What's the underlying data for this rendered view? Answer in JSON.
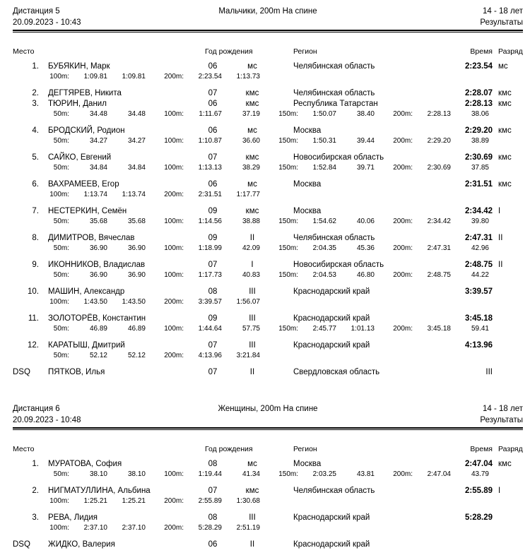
{
  "page": {
    "background": "#ffffff",
    "text_color": "#000000"
  },
  "sections": [
    {
      "header": {
        "distance": "Дистанция 5",
        "datetime": "20.09.2023 - 10:43",
        "event": "Мальчики, 200m На спине",
        "age_group": "14 - 18 лет",
        "results_label": "Результаты"
      },
      "columns": {
        "place": "Место",
        "birth_year": "Год рождения",
        "region": "Регион",
        "time": "Время",
        "rank": "Разряд"
      },
      "rows": [
        {
          "place": "1.",
          "name": "БУБЯКИН, Марк",
          "birth_year": "06",
          "entry_rank": "мс",
          "region": "Челябинская область",
          "time": "2:23.54",
          "final_rank": "мс",
          "splits": [
            {
              "label": "100m:",
              "time": "1:09.81",
              "diff": "1:09.81"
            },
            {
              "label": "200m:",
              "time": "2:23.54",
              "diff": "1:13.73"
            }
          ]
        },
        {
          "place": "2.",
          "name": "ДЕГТЯРЕВ, Никита",
          "birth_year": "07",
          "entry_rank": "кмс",
          "region": "Челябинская область",
          "time": "2:28.07",
          "final_rank": "кмс",
          "splits": []
        },
        {
          "place": "3.",
          "name": "ТЮРИН, Данил",
          "birth_year": "06",
          "entry_rank": "кмс",
          "region": "Республика Татарстан",
          "time": "2:28.13",
          "final_rank": "кмс",
          "splits": [
            {
              "label": "50m:",
              "time": "34.48",
              "diff": "34.48"
            },
            {
              "label": "100m:",
              "time": "1:11.67",
              "diff": "37.19"
            },
            {
              "label": "150m:",
              "time": "1:50.07",
              "diff": "38.40"
            },
            {
              "label": "200m:",
              "time": "2:28.13",
              "diff": "38.06"
            }
          ]
        },
        {
          "place": "4.",
          "name": "БРОДСКИЙ, Родион",
          "birth_year": "06",
          "entry_rank": "мс",
          "region": "Москва",
          "time": "2:29.20",
          "final_rank": "кмс",
          "splits": [
            {
              "label": "50m:",
              "time": "34.27",
              "diff": "34.27"
            },
            {
              "label": "100m:",
              "time": "1:10.87",
              "diff": "36.60"
            },
            {
              "label": "150m:",
              "time": "1:50.31",
              "diff": "39.44"
            },
            {
              "label": "200m:",
              "time": "2:29.20",
              "diff": "38.89"
            }
          ]
        },
        {
          "place": "5.",
          "name": "САЙКО, Евгений",
          "birth_year": "07",
          "entry_rank": "кмс",
          "region": "Новосибирская область",
          "time": "2:30.69",
          "final_rank": "кмс",
          "splits": [
            {
              "label": "50m:",
              "time": "34.84",
              "diff": "34.84"
            },
            {
              "label": "100m:",
              "time": "1:13.13",
              "diff": "38.29"
            },
            {
              "label": "150m:",
              "time": "1:52.84",
              "diff": "39.71"
            },
            {
              "label": "200m:",
              "time": "2:30.69",
              "diff": "37.85"
            }
          ]
        },
        {
          "place": "6.",
          "name": "ВАХРАМЕЕВ, Егор",
          "birth_year": "06",
          "entry_rank": "мс",
          "region": "Москва",
          "time": "2:31.51",
          "final_rank": "кмс",
          "splits": [
            {
              "label": "100m:",
              "time": "1:13.74",
              "diff": "1:13.74"
            },
            {
              "label": "200m:",
              "time": "2:31.51",
              "diff": "1:17.77"
            }
          ]
        },
        {
          "place": "7.",
          "name": "НЕСТЕРКИН, Семён",
          "birth_year": "09",
          "entry_rank": "кмс",
          "region": "Москва",
          "time": "2:34.42",
          "final_rank": "I",
          "splits": [
            {
              "label": "50m:",
              "time": "35.68",
              "diff": "35.68"
            },
            {
              "label": "100m:",
              "time": "1:14.56",
              "diff": "38.88"
            },
            {
              "label": "150m:",
              "time": "1:54.62",
              "diff": "40.06"
            },
            {
              "label": "200m:",
              "time": "2:34.42",
              "diff": "39.80"
            }
          ]
        },
        {
          "place": "8.",
          "name": "ДИМИТРОВ, Вячеслав",
          "birth_year": "09",
          "entry_rank": "II",
          "region": "Челябинская область",
          "time": "2:47.31",
          "final_rank": "II",
          "splits": [
            {
              "label": "50m:",
              "time": "36.90",
              "diff": "36.90"
            },
            {
              "label": "100m:",
              "time": "1:18.99",
              "diff": "42.09"
            },
            {
              "label": "150m:",
              "time": "2:04.35",
              "diff": "45.36"
            },
            {
              "label": "200m:",
              "time": "2:47.31",
              "diff": "42.96"
            }
          ]
        },
        {
          "place": "9.",
          "name": "ИКОННИКОВ, Владислав",
          "birth_year": "07",
          "entry_rank": "I",
          "region": "Новосибирская область",
          "time": "2:48.75",
          "final_rank": "II",
          "splits": [
            {
              "label": "50m:",
              "time": "36.90",
              "diff": "36.90"
            },
            {
              "label": "100m:",
              "time": "1:17.73",
              "diff": "40.83"
            },
            {
              "label": "150m:",
              "time": "2:04.53",
              "diff": "46.80"
            },
            {
              "label": "200m:",
              "time": "2:48.75",
              "diff": "44.22"
            }
          ]
        },
        {
          "place": "10.",
          "name": "МАШИН, Александр",
          "birth_year": "08",
          "entry_rank": "III",
          "region": "Краснодарский край",
          "time": "3:39.57",
          "final_rank": "",
          "splits": [
            {
              "label": "100m:",
              "time": "1:43.50",
              "diff": "1:43.50"
            },
            {
              "label": "200m:",
              "time": "3:39.57",
              "diff": "1:56.07"
            }
          ]
        },
        {
          "place": "11.",
          "name": "ЗОЛОТОРЁВ, Константин",
          "birth_year": "09",
          "entry_rank": "III",
          "region": "Краснодарский край",
          "time": "3:45.18",
          "final_rank": "",
          "splits": [
            {
              "label": "50m:",
              "time": "46.89",
              "diff": "46.89"
            },
            {
              "label": "100m:",
              "time": "1:44.64",
              "diff": "57.75"
            },
            {
              "label": "150m:",
              "time": "2:45.77",
              "diff": "1:01.13"
            },
            {
              "label": "200m:",
              "time": "3:45.18",
              "diff": "59.41"
            }
          ]
        },
        {
          "place": "12.",
          "name": "КАРАТЫШ, Дмитрий",
          "birth_year": "07",
          "entry_rank": "III",
          "region": "Краснодарский край",
          "time": "4:13.96",
          "final_rank": "",
          "splits": [
            {
              "label": "50m:",
              "time": "52.12",
              "diff": "52.12"
            },
            {
              "label": "200m:",
              "time": "4:13.96",
              "diff": "3:21.84"
            }
          ]
        },
        {
          "place": "DSQ",
          "name": "ПЯТКОВ, Илья",
          "birth_year": "07",
          "entry_rank": "II",
          "region": "Свердловская область",
          "time": "",
          "final_rank": "III",
          "splits": []
        }
      ]
    },
    {
      "header": {
        "distance": "Дистанция 6",
        "datetime": "20.09.2023 - 10:48",
        "event": "Женщины, 200m На спине",
        "age_group": "14 - 18 лет",
        "results_label": "Результаты"
      },
      "columns": {
        "place": "Место",
        "birth_year": "Год рождения",
        "region": "Регион",
        "time": "Время",
        "rank": "Разряд"
      },
      "rows": [
        {
          "place": "1.",
          "name": "МУРАТОВА, София",
          "birth_year": "08",
          "entry_rank": "мс",
          "region": "Москва",
          "time": "2:47.04",
          "final_rank": "кмс",
          "splits": [
            {
              "label": "50m:",
              "time": "38.10",
              "diff": "38.10"
            },
            {
              "label": "100m:",
              "time": "1:19.44",
              "diff": "41.34"
            },
            {
              "label": "150m:",
              "time": "2:03.25",
              "diff": "43.81"
            },
            {
              "label": "200m:",
              "time": "2:47.04",
              "diff": "43.79"
            }
          ]
        },
        {
          "place": "2.",
          "name": "НИГМАТУЛЛИНА, Альбина",
          "birth_year": "07",
          "entry_rank": "кмс",
          "region": "Челябинская область",
          "time": "2:55.89",
          "final_rank": "I",
          "splits": [
            {
              "label": "100m:",
              "time": "1:25.21",
              "diff": "1:25.21"
            },
            {
              "label": "200m:",
              "time": "2:55.89",
              "diff": "1:30.68"
            }
          ]
        },
        {
          "place": "3.",
          "name": "РЕВА, Лидия",
          "birth_year": "08",
          "entry_rank": "III",
          "region": "Краснодарский край",
          "time": "5:28.29",
          "final_rank": "",
          "splits": [
            {
              "label": "100m:",
              "time": "2:37.10",
              "diff": "2:37.10"
            },
            {
              "label": "200m:",
              "time": "5:28.29",
              "diff": "2:51.19"
            }
          ]
        },
        {
          "place": "DSQ",
          "name": "ЖИДКО, Валерия",
          "birth_year": "06",
          "entry_rank": "II",
          "region": "Краснодарский край",
          "time": "",
          "final_rank": "",
          "splits": []
        }
      ]
    }
  ]
}
